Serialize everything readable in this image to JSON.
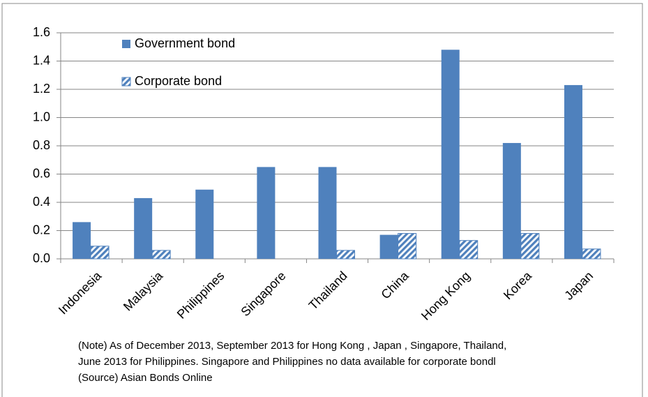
{
  "chart_data": {
    "type": "bar",
    "categories": [
      "Indonesia",
      "Malaysia",
      "Philippines",
      "Singapore",
      "Thailand",
      "China",
      "Hong Kong",
      "Korea",
      "Japan"
    ],
    "series": [
      {
        "name": "Government bond",
        "color": "#4f81bd",
        "values": [
          0.26,
          0.43,
          0.49,
          0.65,
          0.65,
          0.17,
          1.48,
          0.82,
          1.23
        ]
      },
      {
        "name": "Corporate bond",
        "color": "#4f81bd",
        "pattern": "hatch",
        "values": [
          0.09,
          0.06,
          null,
          null,
          0.06,
          0.18,
          0.13,
          0.18,
          0.07
        ]
      }
    ],
    "ylim": [
      0,
      1.6
    ],
    "yticks": [
      {
        "value": 0,
        "label": "0.0"
      },
      0.2,
      0.4,
      0.6,
      0.8,
      {
        "value": 1,
        "label": "1.0"
      },
      1.2,
      1.4,
      1.6
    ],
    "grid": true,
    "legend": "upper left",
    "notes": [
      "(Note) As of December 2013,  September 2013 for Hong Kong , Japan , Singapore, Thailand,",
      "June 2013 for Philippines. Singapore and Philippines  no data available for corporate bondl",
      "(Source) Asian Bonds Online"
    ]
  }
}
